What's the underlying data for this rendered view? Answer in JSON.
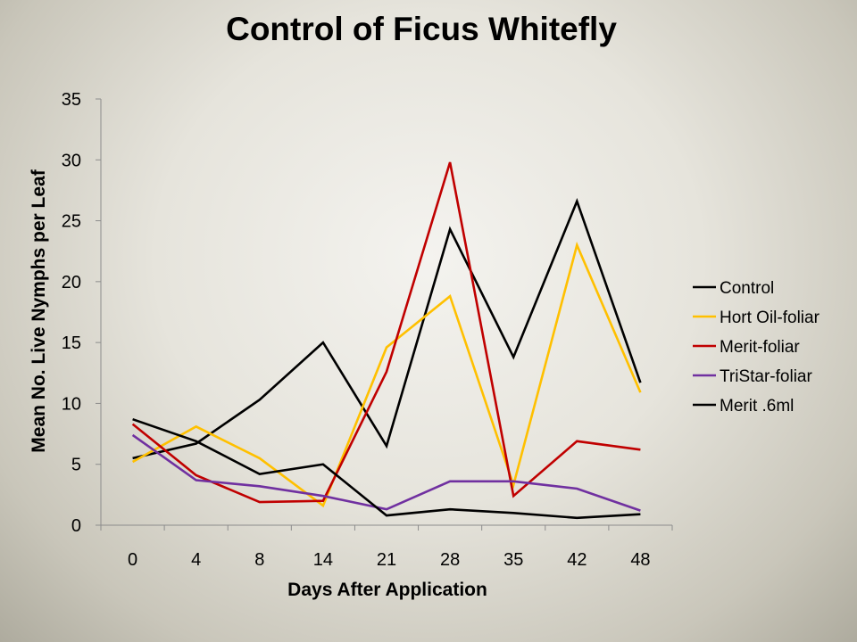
{
  "chart_data": {
    "type": "line",
    "title": "Control of Ficus Whitefly",
    "xlabel": "Days After Application",
    "ylabel": "Mean No. Live Nymphs per Leaf",
    "categories": [
      "0",
      "4",
      "8",
      "14",
      "21",
      "28",
      "35",
      "42",
      "48"
    ],
    "ylim": [
      0,
      35
    ],
    "yticks": [
      "0",
      "5",
      "10",
      "15",
      "20",
      "25",
      "30",
      "35"
    ],
    "grid": false,
    "legend_position": "right",
    "series": [
      {
        "name": "Control",
        "color": "#000000",
        "values": [
          5.5,
          6.7,
          10.3,
          15.0,
          6.5,
          24.3,
          13.8,
          26.6,
          11.7
        ]
      },
      {
        "name": "Hort Oil-foliar",
        "color": "#FFC000",
        "values": [
          5.2,
          8.1,
          5.5,
          1.6,
          14.6,
          18.8,
          3.3,
          23.0,
          10.9
        ]
      },
      {
        "name": "Merit-foliar",
        "color": "#C00000",
        "values": [
          8.3,
          4.1,
          1.9,
          2.0,
          12.6,
          29.8,
          2.4,
          6.9,
          6.2
        ]
      },
      {
        "name": "TriStar-foliar",
        "color": "#7030A0",
        "values": [
          7.4,
          3.7,
          3.2,
          2.4,
          1.3,
          3.6,
          3.6,
          3.0,
          1.2
        ]
      },
      {
        "name": "Merit .6ml",
        "color": "#000000",
        "values": [
          8.7,
          6.9,
          4.2,
          5.0,
          0.8,
          1.3,
          1.0,
          0.6,
          0.9
        ]
      }
    ]
  }
}
